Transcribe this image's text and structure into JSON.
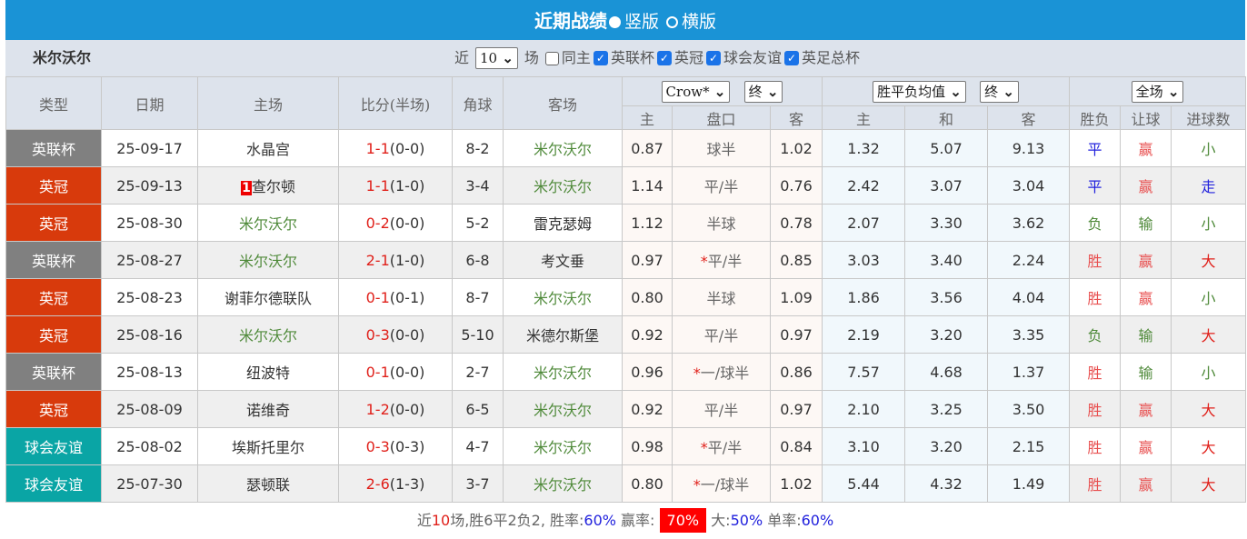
{
  "header": {
    "title": "近期战绩",
    "option_vertical": "竖版",
    "option_horizontal": "横版"
  },
  "filter": {
    "team": "米尔沃尔",
    "near_label": "近",
    "count": "10",
    "games_label": "场",
    "checks": [
      {
        "label": "同主",
        "checked": false
      },
      {
        "label": "英联杯",
        "checked": true
      },
      {
        "label": "英冠",
        "checked": true
      },
      {
        "label": "球会友谊",
        "checked": true
      },
      {
        "label": "英足总杯",
        "checked": true
      }
    ]
  },
  "columns": {
    "type": "类型",
    "date": "日期",
    "home": "主场",
    "score": "比分(半场)",
    "corner": "角球",
    "away": "客场",
    "company": "Crow*",
    "odds_time": "终",
    "eu_type": "胜平负均值",
    "eu_time": "终",
    "scope": "全场",
    "h": "主",
    "line": "盘口",
    "a": "客",
    "eh": "主",
    "ed": "和",
    "ea": "客",
    "wl": "胜负",
    "hc": "让球",
    "ou": "进球数"
  },
  "colors": {
    "英联杯": "#808080",
    "英冠": "#d83a0c",
    "球会友谊": "#0aa5a5"
  },
  "rows": [
    {
      "type": "英联杯",
      "date": "25-09-17",
      "home": "水晶宫",
      "score": "1-1",
      "half": "(0-0)",
      "corner": "8-2",
      "away": "米尔沃尔",
      "h": "0.87",
      "line": "球半",
      "a": "1.02",
      "eh": "1.32",
      "ed": "5.07",
      "ea": "9.13",
      "wl": "平",
      "hc": "赢",
      "ou": "小"
    },
    {
      "type": "英冠",
      "date": "25-09-13",
      "home_badge": "1",
      "home": "查尔顿",
      "score": "1-1",
      "half": "(1-0)",
      "corner": "3-4",
      "away": "米尔沃尔",
      "h": "1.14",
      "line": "平/半",
      "a": "0.76",
      "eh": "2.42",
      "ed": "3.07",
      "ea": "3.04",
      "wl": "平",
      "hc": "赢",
      "ou": "走"
    },
    {
      "type": "英冠",
      "date": "25-08-30",
      "home": "米尔沃尔",
      "score": "0-2",
      "half": "(0-0)",
      "corner": "5-2",
      "away": "雷克瑟姆",
      "h": "1.12",
      "line": "半球",
      "a": "0.78",
      "eh": "2.07",
      "ed": "3.30",
      "ea": "3.62",
      "wl": "负",
      "hc": "输",
      "ou": "小"
    },
    {
      "type": "英联杯",
      "date": "25-08-27",
      "home": "米尔沃尔",
      "score": "2-1",
      "half": "(1-0)",
      "corner": "6-8",
      "away": "考文垂",
      "h": "0.97",
      "line_star": "*",
      "line": "平/半",
      "a": "0.85",
      "eh": "3.03",
      "ed": "3.40",
      "ea": "2.24",
      "wl": "胜",
      "hc": "赢",
      "ou": "大"
    },
    {
      "type": "英冠",
      "date": "25-08-23",
      "home": "谢菲尔德联队",
      "score": "0-1",
      "half": "(0-1)",
      "corner": "8-7",
      "away": "米尔沃尔",
      "h": "0.80",
      "line": "半球",
      "a": "1.09",
      "eh": "1.86",
      "ed": "3.56",
      "ea": "4.04",
      "wl": "胜",
      "hc": "赢",
      "ou": "小"
    },
    {
      "type": "英冠",
      "date": "25-08-16",
      "home": "米尔沃尔",
      "score": "0-3",
      "half": "(0-0)",
      "corner": "5-10",
      "away": "米德尔斯堡",
      "h": "0.92",
      "line": "平/半",
      "a": "0.97",
      "eh": "2.19",
      "ed": "3.20",
      "ea": "3.35",
      "wl": "负",
      "hc": "输",
      "ou": "大"
    },
    {
      "type": "英联杯",
      "date": "25-08-13",
      "home": "纽波特",
      "score": "0-1",
      "half": "(0-0)",
      "corner": "2-7",
      "away": "米尔沃尔",
      "h": "0.96",
      "line_star": "*",
      "line": "一/球半",
      "a": "0.86",
      "eh": "7.57",
      "ed": "4.68",
      "ea": "1.37",
      "wl": "胜",
      "hc": "输",
      "ou": "小"
    },
    {
      "type": "英冠",
      "date": "25-08-09",
      "home": "诺维奇",
      "score": "1-2",
      "half": "(0-0)",
      "corner": "6-5",
      "away": "米尔沃尔",
      "h": "0.92",
      "line": "平/半",
      "a": "0.97",
      "eh": "2.10",
      "ed": "3.25",
      "ea": "3.50",
      "wl": "胜",
      "hc": "赢",
      "ou": "大"
    },
    {
      "type": "球会友谊",
      "date": "25-08-02",
      "home": "埃斯托里尔",
      "score": "0-3",
      "half": "(0-3)",
      "corner": "4-7",
      "away": "米尔沃尔",
      "h": "0.98",
      "line_star": "*",
      "line": "平/半",
      "a": "0.84",
      "eh": "3.10",
      "ed": "3.20",
      "ea": "2.15",
      "wl": "胜",
      "hc": "赢",
      "ou": "大"
    },
    {
      "type": "球会友谊",
      "date": "25-07-30",
      "home": "瑟顿联",
      "score": "2-6",
      "half": "(1-3)",
      "corner": "3-7",
      "away": "米尔沃尔",
      "h": "0.80",
      "line_star": "*",
      "line": "一/球半",
      "a": "1.02",
      "eh": "5.44",
      "ed": "4.32",
      "ea": "1.49",
      "wl": "胜",
      "hc": "赢",
      "ou": "大"
    }
  ],
  "footer": {
    "p1": "近",
    "n": "10",
    "p2": "场,胜6平2负2, 胜率:",
    "win_rate": "60%",
    "p3": " 赢率:",
    "cover_rate": "70%",
    "p4": " 大:",
    "over_rate": "50%",
    "p5": " 单率:",
    "odd_rate": "60%"
  }
}
